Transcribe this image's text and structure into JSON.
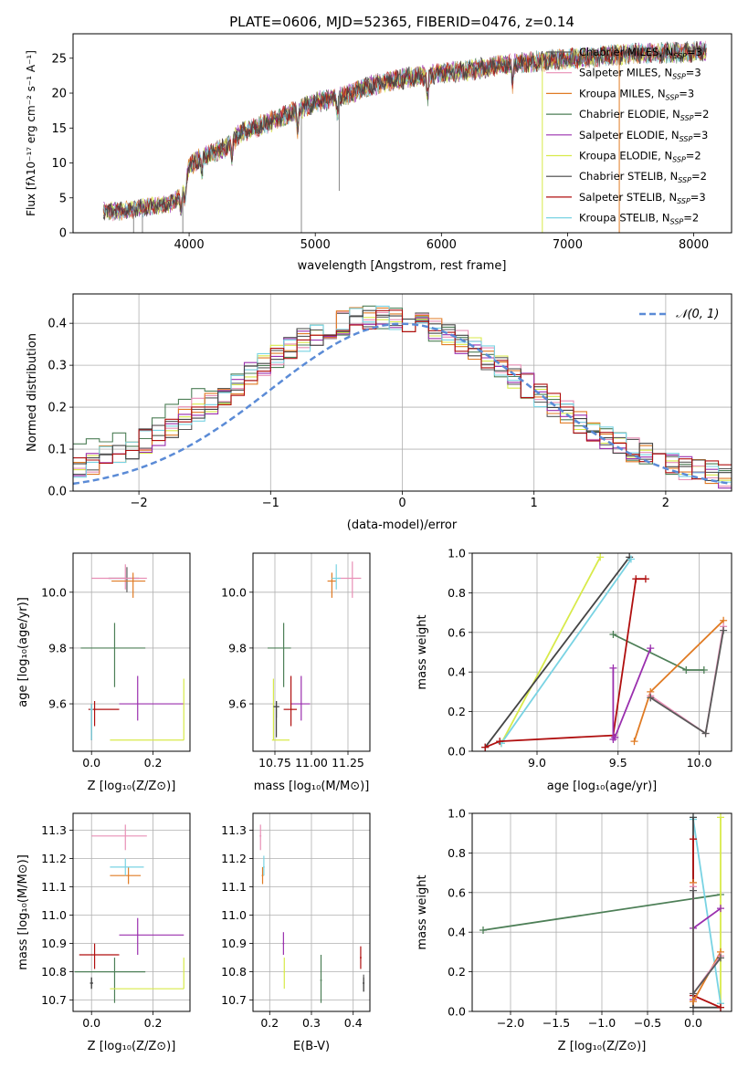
{
  "series_styles": [
    {
      "name": "Chabrier MILES, N$_{SSP}$=3",
      "color": "#5a5a5a"
    },
    {
      "name": "Salpeter MILES, N$_{SSP}$=3",
      "color": "#e88fb6"
    },
    {
      "name": "Kroupa MILES, N$_{SSP}$=3",
      "color": "#e07b24"
    },
    {
      "name": "Chabrier ELODIE, N$_{SSP}$=2",
      "color": "#4d7f57"
    },
    {
      "name": "Salpeter ELODIE, N$_{SSP}$=3",
      "color": "#9a2fae"
    },
    {
      "name": "Kroupa ELODIE, N$_{SSP}$=2",
      "color": "#d8ea4a"
    },
    {
      "name": "Chabrier STELIB, N$_{SSP}$=2",
      "color": "#444444"
    },
    {
      "name": "Salpeter STELIB, N$_{SSP}$=3",
      "color": "#b00f0f"
    },
    {
      "name": "Kroupa STELIB, N$_{SSP}$=2",
      "color": "#79d3e3"
    }
  ],
  "legend_labels": [
    {
      "main": "Chabrier MILES, N",
      "sub": "SSP",
      "tail": "=3"
    },
    {
      "main": "Salpeter MILES, N",
      "sub": "SSP",
      "tail": "=3"
    },
    {
      "main": "Kroupa MILES, N",
      "sub": "SSP",
      "tail": "=3"
    },
    {
      "main": "Chabrier ELODIE, N",
      "sub": "SSP",
      "tail": "=2"
    },
    {
      "main": "Salpeter ELODIE, N",
      "sub": "SSP",
      "tail": "=3"
    },
    {
      "main": "Kroupa ELODIE, N",
      "sub": "SSP",
      "tail": "=2"
    },
    {
      "main": "Chabrier STELIB, N",
      "sub": "SSP",
      "tail": "=2"
    },
    {
      "main": "Salpeter STELIB, N",
      "sub": "SSP",
      "tail": "=3"
    },
    {
      "main": "Kroupa STELIB, N",
      "sub": "SSP",
      "tail": "=2"
    }
  ],
  "chart_data": [
    {
      "id": "spectrum",
      "type": "line",
      "title": "PLATE=0606, MJD=52365, FIBERID=0476, z=0.14",
      "xlabel": "wavelength [Angstrom, rest frame]",
      "ylabel": "Flux [fλ10⁻¹⁷ erg cm⁻² s⁻¹ A⁻¹]",
      "xlim": [
        3080,
        8300
      ],
      "ylim": [
        0,
        28.5
      ],
      "xticks": [
        4000,
        5000,
        6000,
        7000,
        8000
      ],
      "yticks": [
        0,
        5,
        10,
        15,
        20,
        25
      ],
      "grid": false,
      "legend_loc": "top-right",
      "continuum": {
        "x": [
          3320,
          3450,
          3550,
          3700,
          3850,
          3950,
          4000,
          4100,
          4200,
          4300,
          4400,
          4600,
          4800,
          5000,
          5200,
          5400,
          5600,
          5800,
          6000,
          6200,
          6400,
          6600,
          6800,
          7000,
          7200,
          7400,
          7600,
          7800,
          8000,
          8100
        ],
        "y": [
          3.1,
          3.1,
          3.3,
          3.8,
          4.2,
          5.5,
          9.5,
          10.8,
          11.6,
          12.3,
          14.2,
          15.6,
          17.1,
          18.7,
          19.4,
          20.9,
          21.8,
          22.4,
          22.9,
          23.2,
          23.8,
          24.3,
          24.6,
          24.9,
          25.2,
          25.5,
          25.7,
          25.8,
          25.9,
          26.0
        ]
      },
      "absorption_lines": [
        {
          "x": 3934,
          "depth": 2.2
        },
        {
          "x": 3968,
          "depth": 2.0
        },
        {
          "x": 4102,
          "depth": 2.5
        },
        {
          "x": 4340,
          "depth": 2.5
        },
        {
          "x": 4861,
          "depth": 3.0
        },
        {
          "x": 5175,
          "depth": 2.5
        },
        {
          "x": 5890,
          "depth": 3.5
        },
        {
          "x": 6563,
          "depth": 3.0
        }
      ],
      "spikes": [
        {
          "x": 3560,
          "y": 0
        },
        {
          "x": 3630,
          "y": 0
        },
        {
          "x": 3950,
          "y": 0
        },
        {
          "x": 4890,
          "y": 0
        },
        {
          "x": 5190,
          "y": 6.0
        },
        {
          "x": 6800,
          "y": 0
        },
        {
          "x": 7410,
          "y": 0
        }
      ]
    },
    {
      "id": "residuals",
      "type": "line",
      "xlabel": "(data-model)/error",
      "ylabel": "Normed distribution",
      "xlim": [
        -2.5,
        2.5
      ],
      "ylim": [
        0,
        0.47
      ],
      "xticks": [
        -2,
        -1,
        0,
        1,
        2
      ],
      "yticks": [
        0.0,
        0.1,
        0.2,
        0.3,
        0.4
      ],
      "grid": true,
      "legend_loc": "top-right",
      "gaussian_label": "𝒩(0, 1)",
      "gaussian_color": "#5b8bd6",
      "bin_width": 0.1
    },
    {
      "id": "age_vs_Z",
      "type": "scatter",
      "xlabel": "Z [log₁₀(Z/Z⊙)]",
      "ylabel": "age  [log₁₀(age/yr)]",
      "xlim": [
        -0.06,
        0.32
      ],
      "ylim": [
        9.43,
        10.14
      ],
      "xticks": [
        0.0,
        0.2
      ],
      "yticks": [
        9.6,
        9.8,
        10.0
      ],
      "grid": true,
      "points": [
        {
          "series": 0,
          "x": 0.115,
          "y": 10.05,
          "xerr": [
            0.06,
            0.04
          ],
          "yerr": [
            0.05,
            0.04
          ]
        },
        {
          "series": 1,
          "x": 0.11,
          "y": 10.05,
          "xerr": [
            0.11,
            0.07
          ],
          "yerr": [
            0.04,
            0.05
          ]
        },
        {
          "series": 2,
          "x": 0.135,
          "y": 10.04,
          "xerr": [
            0.07,
            0.04
          ],
          "yerr": [
            0.06,
            0.03
          ]
        },
        {
          "series": 3,
          "x": 0.075,
          "y": 9.8,
          "xerr": [
            0.11,
            0.1
          ],
          "yerr": [
            0.14,
            0.09
          ]
        },
        {
          "series": 4,
          "x": 0.15,
          "y": 9.6,
          "xerr": [
            0.06,
            0.15
          ],
          "yerr": [
            0.06,
            0.1
          ]
        },
        {
          "series": 5,
          "x": 0.3,
          "y": 9.47,
          "xerr": [
            0.24,
            0.0
          ],
          "yerr": [
            0.0,
            0.22
          ]
        },
        {
          "series": 6,
          "x": 0.0,
          "y": 9.58,
          "xerr": [
            0.005,
            0.005
          ],
          "yerr": [
            0.11,
            0.02
          ]
        },
        {
          "series": 7,
          "x": 0.01,
          "y": 9.58,
          "xerr": [
            0.02,
            0.08
          ],
          "yerr": [
            0.06,
            0.03
          ]
        },
        {
          "series": 8,
          "x": 0.0,
          "y": 9.58,
          "xerr": [
            0.005,
            0.005
          ],
          "yerr": [
            0.11,
            0.02
          ]
        }
      ]
    },
    {
      "id": "age_vs_mass",
      "type": "scatter",
      "xlabel": "mass [log₁₀(M/M⊙)]",
      "ylabel": "",
      "xlim": [
        10.6,
        11.4
      ],
      "ylim": [
        9.43,
        10.14
      ],
      "xticks": [
        10.75,
        11.0,
        11.25
      ],
      "yticks": [
        9.6,
        9.8,
        10.0
      ],
      "grid": true,
      "points": [
        {
          "series": 0,
          "x": 10.76,
          "y": 9.59,
          "xerr": [
            0.02,
            0.02
          ],
          "yerr": [
            0.04,
            0.02
          ]
        },
        {
          "series": 1,
          "x": 11.28,
          "y": 10.05,
          "xerr": [
            0.1,
            0.06
          ],
          "yerr": [
            0.07,
            0.06
          ]
        },
        {
          "series": 2,
          "x": 11.14,
          "y": 10.04,
          "xerr": [
            0.03,
            0.03
          ],
          "yerr": [
            0.06,
            0.03
          ]
        },
        {
          "series": 3,
          "x": 10.81,
          "y": 9.8,
          "xerr": [
            0.11,
            0.05
          ],
          "yerr": [
            0.14,
            0.09
          ]
        },
        {
          "series": 4,
          "x": 10.93,
          "y": 9.6,
          "xerr": [
            0.07,
            0.06
          ],
          "yerr": [
            0.06,
            0.1
          ]
        },
        {
          "series": 5,
          "x": 10.74,
          "y": 9.47,
          "xerr": [
            0.01,
            0.11
          ],
          "yerr": [
            0.0,
            0.22
          ]
        },
        {
          "series": 6,
          "x": 10.76,
          "y": 9.59,
          "xerr": [
            0.02,
            0.02
          ],
          "yerr": [
            0.11,
            0.02
          ]
        },
        {
          "series": 7,
          "x": 10.86,
          "y": 9.58,
          "xerr": [
            0.05,
            0.04
          ],
          "yerr": [
            0.06,
            0.12
          ]
        },
        {
          "series": 8,
          "x": 11.17,
          "y": 10.05,
          "xerr": [
            0.03,
            0.03
          ],
          "yerr": [
            0.04,
            0.05
          ]
        }
      ]
    },
    {
      "id": "mass_weight_vs_age",
      "type": "line",
      "xlabel": "age  [log₁₀(age/yr)]",
      "ylabel": "mass weight",
      "xlim": [
        8.6,
        10.2
      ],
      "ylim": [
        0,
        1.0
      ],
      "xticks": [
        9.0,
        9.5,
        10.0
      ],
      "yticks": [
        0.0,
        0.2,
        0.4,
        0.6,
        0.8,
        1.0
      ],
      "grid": true,
      "series_paths": [
        {
          "series": 5,
          "x": [
            8.78,
            9.39
          ],
          "y": [
            0.04,
            0.98
          ]
        },
        {
          "series": 6,
          "x": [
            8.68,
            9.57
          ],
          "y": [
            0.02,
            0.98
          ]
        },
        {
          "series": 8,
          "x": [
            8.78,
            9.58
          ],
          "y": [
            0.04,
            0.97
          ]
        },
        {
          "series": 3,
          "x": [
            9.47,
            9.92,
            10.03
          ],
          "y": [
            0.59,
            0.41,
            0.41
          ]
        },
        {
          "series": 7,
          "x": [
            8.68,
            8.77,
            9.47,
            9.61,
            9.67
          ],
          "y": [
            0.02,
            0.05,
            0.08,
            0.87,
            0.87
          ]
        },
        {
          "series": 4,
          "x": [
            9.47,
            9.47,
            9.48,
            9.7
          ],
          "y": [
            0.42,
            0.06,
            0.07,
            0.52
          ]
        },
        {
          "series": 2,
          "x": [
            9.6,
            9.7,
            10.15
          ],
          "y": [
            0.05,
            0.3,
            0.66
          ]
        },
        {
          "series": 1,
          "x": [
            9.7,
            10.04,
            10.15
          ],
          "y": [
            0.28,
            0.09,
            0.63
          ]
        },
        {
          "series": 0,
          "x": [
            9.7,
            10.04,
            10.15
          ],
          "y": [
            0.27,
            0.09,
            0.61
          ]
        }
      ]
    },
    {
      "id": "mass_vs_Z",
      "type": "scatter",
      "xlabel": "Z [log₁₀(Z/Z⊙)]",
      "ylabel": "mass [log₁₀(M/M⊙)]",
      "xlim": [
        -0.06,
        0.32
      ],
      "ylim": [
        10.66,
        11.36
      ],
      "xticks": [
        0.0,
        0.2
      ],
      "yticks": [
        10.7,
        10.8,
        10.9,
        11.0,
        11.1,
        11.2,
        11.3
      ],
      "grid": true,
      "points": [
        {
          "series": 0,
          "x": 0.0,
          "y": 10.76,
          "xerr": [
            0.005,
            0.005
          ],
          "yerr": [
            0.02,
            0.02
          ]
        },
        {
          "series": 1,
          "x": 0.11,
          "y": 11.28,
          "xerr": [
            0.11,
            0.07
          ],
          "yerr": [
            0.05,
            0.04
          ]
        },
        {
          "series": 2,
          "x": 0.12,
          "y": 11.14,
          "xerr": [
            0.06,
            0.04
          ],
          "yerr": [
            0.03,
            0.03
          ]
        },
        {
          "series": 3,
          "x": 0.075,
          "y": 10.8,
          "xerr": [
            0.13,
            0.1
          ],
          "yerr": [
            0.11,
            0.05
          ]
        },
        {
          "series": 4,
          "x": 0.15,
          "y": 10.93,
          "xerr": [
            0.06,
            0.15
          ],
          "yerr": [
            0.07,
            0.06
          ]
        },
        {
          "series": 5,
          "x": 0.3,
          "y": 10.74,
          "xerr": [
            0.24,
            0.0
          ],
          "yerr": [
            0.0,
            0.11
          ]
        },
        {
          "series": 6,
          "x": 0.0,
          "y": 10.76,
          "xerr": [
            0.005,
            0.005
          ],
          "yerr": [
            0.02,
            0.02
          ]
        },
        {
          "series": 7,
          "x": 0.01,
          "y": 10.86,
          "xerr": [
            0.05,
            0.08
          ],
          "yerr": [
            0.05,
            0.04
          ]
        },
        {
          "series": 8,
          "x": 0.11,
          "y": 11.17,
          "xerr": [
            0.05,
            0.06
          ],
          "yerr": [
            0.03,
            0.03
          ]
        }
      ]
    },
    {
      "id": "mass_vs_ebv",
      "type": "scatter",
      "xlabel": "E(B-V)",
      "ylabel": "",
      "xlim": [
        0.16,
        0.44
      ],
      "ylim": [
        10.66,
        11.36
      ],
      "xticks": [
        0.2,
        0.3,
        0.4
      ],
      "yticks": [
        10.7,
        10.8,
        10.9,
        11.0,
        11.1,
        11.2,
        11.3
      ],
      "grid": true,
      "points": [
        {
          "series": 0,
          "x": 0.425,
          "y": 10.76,
          "xerr": [
            0.002,
            0.002
          ],
          "yerr": [
            0.03,
            0.03
          ]
        },
        {
          "series": 1,
          "x": 0.178,
          "y": 11.28,
          "xerr": [
            0.002,
            0.002
          ],
          "yerr": [
            0.05,
            0.04
          ]
        },
        {
          "series": 2,
          "x": 0.183,
          "y": 11.14,
          "xerr": [
            0.002,
            0.002
          ],
          "yerr": [
            0.03,
            0.03
          ]
        },
        {
          "series": 3,
          "x": 0.323,
          "y": 10.77,
          "xerr": [
            0.002,
            0.002
          ],
          "yerr": [
            0.08,
            0.09
          ]
        },
        {
          "series": 4,
          "x": 0.233,
          "y": 10.9,
          "xerr": [
            0.002,
            0.002
          ],
          "yerr": [
            0.04,
            0.04
          ]
        },
        {
          "series": 5,
          "x": 0.235,
          "y": 10.8,
          "xerr": [
            0.002,
            0.002
          ],
          "yerr": [
            0.06,
            0.05
          ]
        },
        {
          "series": 6,
          "x": 0.425,
          "y": 10.76,
          "xerr": [
            0.002,
            0.002
          ],
          "yerr": [
            0.03,
            0.02
          ]
        },
        {
          "series": 7,
          "x": 0.418,
          "y": 10.85,
          "xerr": [
            0.002,
            0.002
          ],
          "yerr": [
            0.04,
            0.04
          ]
        },
        {
          "series": 8,
          "x": 0.186,
          "y": 11.17,
          "xerr": [
            0.002,
            0.002
          ],
          "yerr": [
            0.03,
            0.04
          ]
        }
      ]
    },
    {
      "id": "mass_weight_vs_Z",
      "type": "line",
      "xlabel": "Z [log₁₀(Z/Z⊙)]",
      "ylabel": "mass weight",
      "xlim": [
        -2.42,
        0.42
      ],
      "ylim": [
        0,
        1.0
      ],
      "xticks": [
        -2.0,
        -1.5,
        -1.0,
        -0.5,
        0.0
      ],
      "yticks": [
        0.0,
        0.2,
        0.4,
        0.6,
        0.8,
        1.0
      ],
      "grid": true,
      "series_paths": [
        {
          "series": 3,
          "x": [
            -2.3,
            0.3
          ],
          "y": [
            0.41,
            0.59
          ]
        },
        {
          "series": 5,
          "x": [
            0.3,
            0.3
          ],
          "y": [
            0.04,
            0.98
          ]
        },
        {
          "series": 8,
          "x": [
            0.0,
            0.0,
            0.3
          ],
          "y": [
            0.97,
            0.97,
            0.04
          ]
        },
        {
          "series": 6,
          "x": [
            0.0,
            0.0,
            0.3
          ],
          "y": [
            0.98,
            0.02,
            0.02
          ]
        },
        {
          "series": 7,
          "x": [
            0.0,
            0.0,
            0.3
          ],
          "y": [
            0.87,
            0.08,
            0.02
          ]
        },
        {
          "series": 4,
          "x": [
            0.0,
            0.0,
            0.3
          ],
          "y": [
            0.06,
            0.42,
            0.52
          ]
        },
        {
          "series": 2,
          "x": [
            0.0,
            0.0,
            0.3
          ],
          "y": [
            0.65,
            0.05,
            0.3
          ]
        },
        {
          "series": 1,
          "x": [
            0.0,
            0.0,
            0.3
          ],
          "y": [
            0.63,
            0.09,
            0.28
          ]
        },
        {
          "series": 0,
          "x": [
            0.0,
            0.0,
            0.3
          ],
          "y": [
            0.61,
            0.09,
            0.27
          ]
        }
      ]
    }
  ]
}
